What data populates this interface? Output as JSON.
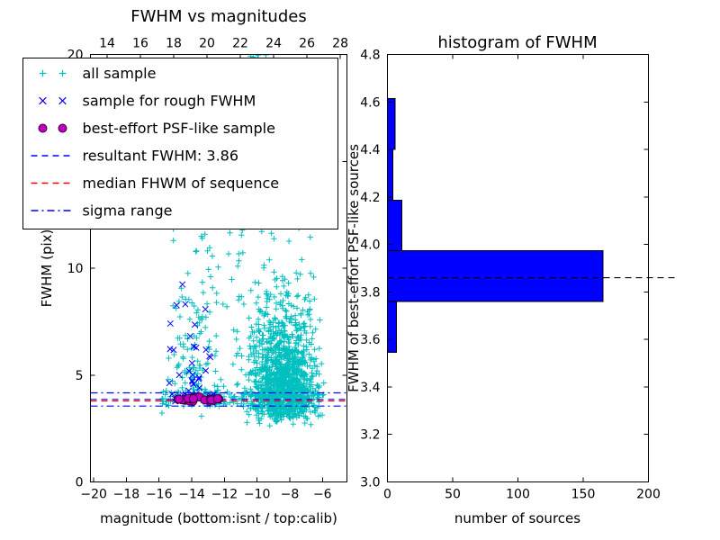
{
  "figure": {
    "background": "#ffffff",
    "frame_color": "#000000"
  },
  "chart_data": [
    {
      "id": "fwhm-vs-magnitudes",
      "type": "scatter",
      "title": "FWHM vs magnitudes",
      "xlabel": "magnitude (bottom:isnt / top:calib)",
      "ylabel": "FWHM (pix)",
      "xlim": [
        -20.2,
        -4.5
      ],
      "ylim": [
        0,
        20
      ],
      "xticks": [
        -20,
        -18,
        -16,
        -14,
        -12,
        -10,
        -8,
        -6
      ],
      "yticks": [
        0,
        5,
        10,
        15,
        20
      ],
      "top_axis": {
        "lim": [
          13.0,
          28.4
        ],
        "ticks": [
          14,
          16,
          18,
          20,
          22,
          24,
          26,
          28
        ]
      },
      "grid": false,
      "series": [
        {
          "name": "all sample",
          "marker": "plus",
          "color": "#00bfbf",
          "clusters": [
            {
              "n": 1300,
              "x": {
                "dist": "normal",
                "mu": -8.4,
                "sigma": 1.0,
                "min": -11.8,
                "max": -5.9
              },
              "y": {
                "dist": "lognormal",
                "mu": 0.95,
                "sigma": 0.55,
                "offset": 2.2,
                "min": 2.2,
                "max": 20
              }
            },
            {
              "n": 180,
              "x": {
                "dist": "uniform",
                "min": -16.0,
                "max": -6.2
              },
              "y": {
                "dist": "normal",
                "mu": 3.9,
                "sigma": 0.28,
                "min": 3.0,
                "max": 4.9
              }
            },
            {
              "n": 130,
              "x": {
                "dist": "normal",
                "mu": -13.9,
                "sigma": 0.8,
                "min": -15.8,
                "max": -12.0
              },
              "y": {
                "dist": "lognormal",
                "mu": 1.2,
                "sigma": 0.8,
                "offset": 3.0,
                "min": 3.2,
                "max": 19.5
              }
            },
            {
              "n": 70,
              "x": {
                "dist": "uniform",
                "min": -13.2,
                "max": -8.8
              },
              "y": {
                "dist": "uniform",
                "min": 4.5,
                "max": 19.8
              }
            },
            {
              "n": 7,
              "x": {
                "dist": "uniform",
                "min": -10.4,
                "max": -9.2
              },
              "y": {
                "dist": "uniform",
                "min": 19.2,
                "max": 20.0
              }
            }
          ]
        },
        {
          "name": "sample for rough FWHM",
          "marker": "x",
          "color": "#0000ff",
          "clusters": [
            {
              "n": 38,
              "x": {
                "dist": "normal",
                "mu": -14.0,
                "sigma": 0.9,
                "min": -15.7,
                "max": -12.2
              },
              "y": {
                "dist": "lognormal",
                "mu": 0.5,
                "sigma": 1.0,
                "offset": 3.4,
                "min": 3.5,
                "max": 13.5
              }
            },
            {
              "n": 10,
              "x": {
                "dist": "uniform",
                "min": -15.2,
                "max": -12.4
              },
              "y": {
                "dist": "normal",
                "mu": 3.9,
                "sigma": 0.15,
                "min": 3.6,
                "max": 4.2
              }
            }
          ]
        },
        {
          "name": "best-effort PSF-like sample",
          "marker": "circle",
          "color": "#bf00bf",
          "edge_color": "#3c003c",
          "clusters": [
            {
              "n": 24,
              "x": {
                "dist": "uniform",
                "min": -15.1,
                "max": -12.3
              },
              "y": {
                "dist": "normal",
                "mu": 3.86,
                "sigma": 0.06,
                "min": 3.65,
                "max": 4.05
              }
            }
          ]
        }
      ],
      "lines": [
        {
          "label": "resultant FWHM: 3.86",
          "y": 3.86,
          "color": "#0000ff",
          "style": "dashed"
        },
        {
          "label": "median FHWM of sequence",
          "y": 3.79,
          "color": "#ff0000",
          "style": "dashed"
        },
        {
          "label": "sigma range lower",
          "y": 3.55,
          "color": "#0000ff",
          "style": "dashdot"
        },
        {
          "label": "sigma range upper",
          "y": 4.17,
          "color": "#0000ff",
          "style": "dashdot"
        }
      ],
      "legend": {
        "position": "upper left",
        "entries": [
          {
            "label": "all sample",
            "type": "marker",
            "marker": "plus",
            "color": "#00bfbf"
          },
          {
            "label": "sample for rough FWHM",
            "type": "marker",
            "marker": "x",
            "color": "#0000ff"
          },
          {
            "label": "best-effort PSF-like sample",
            "type": "marker",
            "marker": "circle",
            "color": "#bf00bf",
            "edge_color": "#3c003c"
          },
          {
            "label": "resultant FWHM: 3.86",
            "type": "line",
            "dash": "dashed",
            "color": "#0000ff"
          },
          {
            "label": "median FHWM of sequence",
            "type": "line",
            "dash": "dashed",
            "color": "#ff0000"
          },
          {
            "label": "sigma range",
            "type": "line",
            "dash": "dashdot",
            "color": "#0000ff"
          }
        ]
      }
    },
    {
      "id": "fwhm-histogram",
      "type": "bar",
      "orientation": "horizontal",
      "title": "histogram of FWHM",
      "xlabel": "number of sources",
      "ylabel": "FWHM of best-effort PSF-like sources",
      "xlim": [
        0,
        200
      ],
      "ylim": [
        3.0,
        4.8
      ],
      "xticks": [
        0,
        50,
        100,
        150,
        200
      ],
      "yticks": [
        3.0,
        3.2,
        3.4,
        3.6,
        3.8,
        4.0,
        4.2,
        4.4,
        4.6,
        4.8
      ],
      "grid": false,
      "bar_color": "#0000ff",
      "bar_edge": "#000000",
      "bin_edges": [
        3.545,
        3.759,
        3.973,
        4.187,
        4.401,
        4.615
      ],
      "counts": [
        7,
        165,
        11,
        4,
        6
      ],
      "median_line": {
        "y": 3.86,
        "color": "#000000",
        "style": "dashed"
      }
    }
  ]
}
